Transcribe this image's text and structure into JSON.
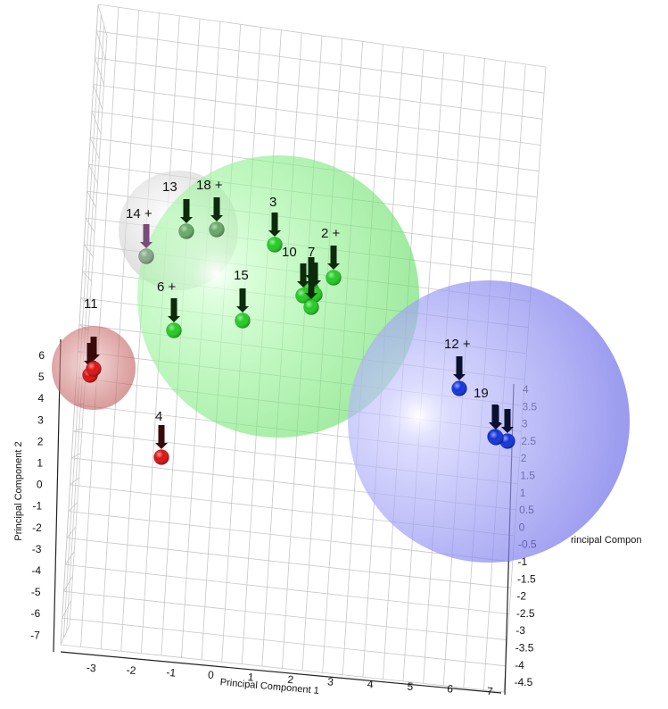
{
  "chart_data": {
    "type": "scatter",
    "projection": "3d",
    "axes": {
      "x": {
        "label": "Principal Component 1",
        "ticks": [
          "-3",
          "-2",
          "-1",
          "0",
          "1",
          "2",
          "3",
          "4",
          "5",
          "6",
          "7"
        ]
      },
      "y": {
        "label": "Principal Component 2",
        "ticks": [
          "6",
          "5",
          "4",
          "3",
          "2",
          "1",
          "0",
          "-1",
          "-2",
          "-3",
          "-4",
          "-5",
          "-6",
          "-7"
        ]
      },
      "z": {
        "label": "rincipal Compon",
        "ticks": [
          "4",
          "3.5",
          "3",
          "2.5",
          "2",
          "1.5",
          "1",
          "0.5",
          "0",
          "-0.5",
          "-1",
          "-1.5",
          "-2",
          "-2.5",
          "-3",
          "-3.5",
          "-4",
          "-4.5"
        ]
      }
    },
    "grid": true,
    "clusters": [
      {
        "color": "#cccccc",
        "points": [
          "13",
          "18",
          "14"
        ]
      },
      {
        "color": "#33ee33",
        "points": [
          "3",
          "2",
          "10",
          "7",
          "6",
          "15"
        ]
      },
      {
        "color": "#cc3333",
        "points": [
          "11",
          "12",
          "4"
        ]
      },
      {
        "color": "#6666ee",
        "points": [
          "12",
          "19"
        ]
      }
    ],
    "points": [
      {
        "id": "13",
        "label": "13",
        "color": "#66aa66"
      },
      {
        "id": "18",
        "label": "18 +",
        "color": "#66aa66"
      },
      {
        "id": "14",
        "label": "14 +",
        "color": "#88aa88"
      },
      {
        "id": "3",
        "label": "3",
        "color": "#22cc22"
      },
      {
        "id": "2",
        "label": "2 +",
        "color": "#22cc22"
      },
      {
        "id": "10",
        "label": "10",
        "color": "#22cc22"
      },
      {
        "id": "7",
        "label": "7",
        "color": "#22cc22"
      },
      {
        "id": "6",
        "label": "6 +",
        "color": "#22cc22"
      },
      {
        "id": "15",
        "label": "15",
        "color": "#22cc22"
      },
      {
        "id": "11",
        "label": "11",
        "color": "#dd1111"
      },
      {
        "id": "4",
        "label": "4",
        "color": "#dd1111"
      },
      {
        "id": "12",
        "label": "12 +",
        "color": "#1133dd"
      },
      {
        "id": "19",
        "label": "19",
        "color": "#1133dd"
      }
    ]
  }
}
